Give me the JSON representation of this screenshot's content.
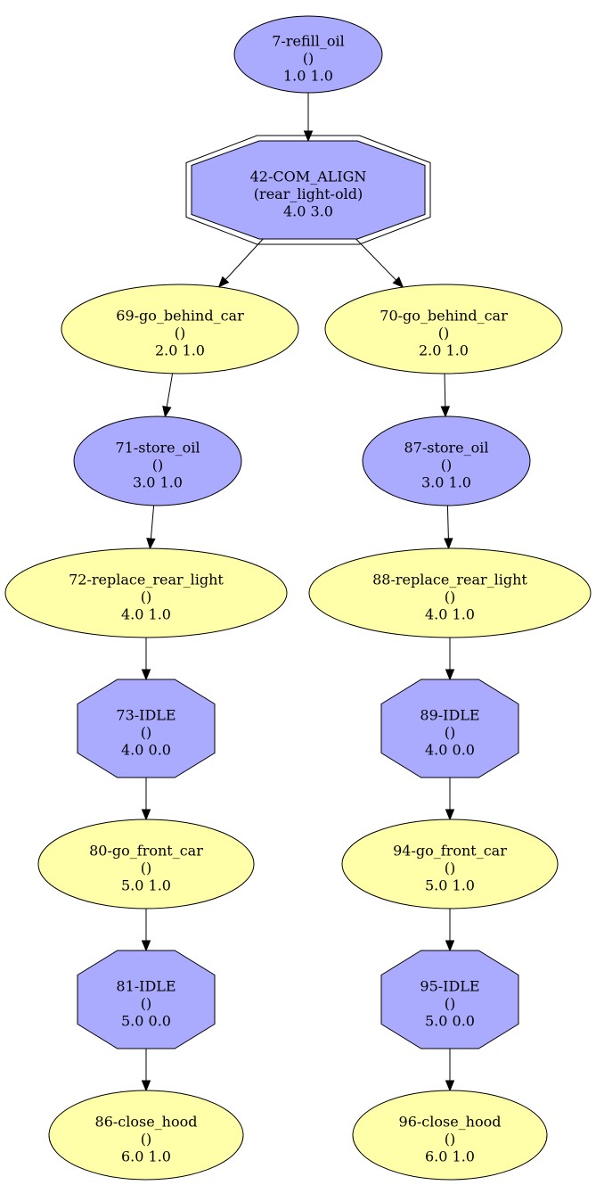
{
  "colors": {
    "action_fill": "#ffffaa",
    "task_fill": "#aaaaff",
    "stroke": "#000000"
  },
  "nodes": [
    {
      "id": "n7",
      "shape": "ellipse",
      "fill": "task",
      "lines": [
        "7-refill_oil",
        "()",
        "1.0 1.0"
      ]
    },
    {
      "id": "n42",
      "shape": "double-octagon",
      "fill": "task",
      "lines": [
        "42-COM_ALIGN",
        "(rear_light-old)",
        "4.0 3.0"
      ]
    },
    {
      "id": "n69",
      "shape": "ellipse",
      "fill": "action",
      "lines": [
        "69-go_behind_car",
        "()",
        "2.0 1.0"
      ]
    },
    {
      "id": "n70",
      "shape": "ellipse",
      "fill": "action",
      "lines": [
        "70-go_behind_car",
        "()",
        "2.0 1.0"
      ]
    },
    {
      "id": "n71",
      "shape": "ellipse",
      "fill": "task",
      "lines": [
        "71-store_oil",
        "()",
        "3.0 1.0"
      ]
    },
    {
      "id": "n87",
      "shape": "ellipse",
      "fill": "task",
      "lines": [
        "87-store_oil",
        "()",
        "3.0 1.0"
      ]
    },
    {
      "id": "n72",
      "shape": "ellipse",
      "fill": "action",
      "lines": [
        "72-replace_rear_light",
        "()",
        "4.0 1.0"
      ]
    },
    {
      "id": "n88",
      "shape": "ellipse",
      "fill": "action",
      "lines": [
        "88-replace_rear_light",
        "()",
        "4.0 1.0"
      ]
    },
    {
      "id": "n73",
      "shape": "octagon",
      "fill": "task",
      "lines": [
        "73-IDLE",
        "()",
        "4.0 0.0"
      ]
    },
    {
      "id": "n89",
      "shape": "octagon",
      "fill": "task",
      "lines": [
        "89-IDLE",
        "()",
        "4.0 0.0"
      ]
    },
    {
      "id": "n80",
      "shape": "ellipse",
      "fill": "action",
      "lines": [
        "80-go_front_car",
        "()",
        "5.0 1.0"
      ]
    },
    {
      "id": "n94",
      "shape": "ellipse",
      "fill": "action",
      "lines": [
        "94-go_front_car",
        "()",
        "5.0 1.0"
      ]
    },
    {
      "id": "n81",
      "shape": "octagon",
      "fill": "task",
      "lines": [
        "81-IDLE",
        "()",
        "5.0 0.0"
      ]
    },
    {
      "id": "n95",
      "shape": "octagon",
      "fill": "task",
      "lines": [
        "95-IDLE",
        "()",
        "5.0 0.0"
      ]
    },
    {
      "id": "n86",
      "shape": "ellipse",
      "fill": "action",
      "lines": [
        "86-close_hood",
        "()",
        "6.0 1.0"
      ]
    },
    {
      "id": "n96",
      "shape": "ellipse",
      "fill": "action",
      "lines": [
        "96-close_hood",
        "()",
        "6.0 1.0"
      ]
    }
  ],
  "edges": [
    {
      "from": "n7",
      "to": "n42"
    },
    {
      "from": "n42",
      "to": "n69"
    },
    {
      "from": "n42",
      "to": "n70"
    },
    {
      "from": "n69",
      "to": "n71"
    },
    {
      "from": "n70",
      "to": "n87"
    },
    {
      "from": "n71",
      "to": "n72"
    },
    {
      "from": "n87",
      "to": "n88"
    },
    {
      "from": "n72",
      "to": "n73"
    },
    {
      "from": "n88",
      "to": "n89"
    },
    {
      "from": "n73",
      "to": "n80"
    },
    {
      "from": "n89",
      "to": "n94"
    },
    {
      "from": "n80",
      "to": "n81"
    },
    {
      "from": "n94",
      "to": "n95"
    },
    {
      "from": "n81",
      "to": "n86"
    },
    {
      "from": "n95",
      "to": "n96"
    }
  ]
}
